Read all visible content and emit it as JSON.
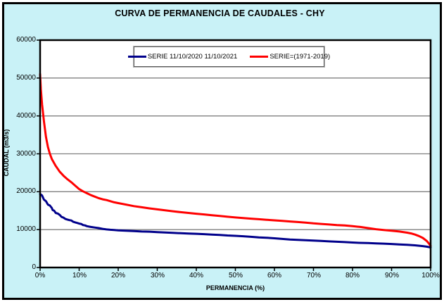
{
  "window": {
    "title": "CURVA DE PERMANENCIA DE CAUDALES - CHY"
  },
  "colors": {
    "background": "#c9f2f7",
    "plot_background": "#ffffff",
    "frame_border": "#000000",
    "gridline": "#808080",
    "axis": "#000000",
    "series_2020": "#00008b",
    "series_1971": "#ff0000"
  },
  "legend": {
    "entries": [
      {
        "label": "SERIE 11/10/2020 11/10/2021",
        "color": "#00008b"
      },
      {
        "label": "SERIE=(1971-2019)",
        "color": "#ff0000"
      }
    ]
  },
  "chart_data": {
    "type": "line",
    "title": "CURVA DE PERMANENCIA DE CAUDALES - CHY",
    "xlabel": "PERMANENCIA (%)",
    "ylabel": "CAUDAL (m3/s)",
    "xlim": [
      0,
      100
    ],
    "ylim": [
      0,
      60000
    ],
    "x_tick_values": [
      0,
      10,
      20,
      30,
      40,
      50,
      60,
      70,
      80,
      90,
      100
    ],
    "x_tick_labels": [
      "0%",
      "10%",
      "20%",
      "30%",
      "40%",
      "50%",
      "60%",
      "70%",
      "80%",
      "90%",
      "100%"
    ],
    "y_tick_values": [
      0,
      10000,
      20000,
      30000,
      40000,
      50000,
      60000
    ],
    "y_tick_labels": [
      "0",
      "10000",
      "20000",
      "30000",
      "40000",
      "50000",
      "60000"
    ],
    "grid": "horizontal",
    "legend_position": "top-inside",
    "series": [
      {
        "name": "SERIE 11/10/2020 11/10/2021",
        "color": "#00008b",
        "width": 3,
        "points": [
          [
            0,
            19400
          ],
          [
            0.5,
            19000
          ],
          [
            1,
            17900
          ],
          [
            1.5,
            17500
          ],
          [
            2,
            16600
          ],
          [
            2.5,
            16350
          ],
          [
            3,
            15700
          ],
          [
            3.2,
            15150
          ],
          [
            3.6,
            15000
          ],
          [
            4,
            14400
          ],
          [
            4.5,
            14250
          ],
          [
            5,
            13900
          ],
          [
            5.5,
            13350
          ],
          [
            6,
            13150
          ],
          [
            6.5,
            12800
          ],
          [
            7,
            12650
          ],
          [
            7.5,
            12500
          ],
          [
            8,
            12400
          ],
          [
            8.5,
            12050
          ],
          [
            9,
            11900
          ],
          [
            9.5,
            11750
          ],
          [
            10,
            11600
          ],
          [
            10.5,
            11500
          ],
          [
            11,
            11200
          ],
          [
            11.5,
            11100
          ],
          [
            12,
            10900
          ],
          [
            13,
            10700
          ],
          [
            14,
            10550
          ],
          [
            15,
            10400
          ],
          [
            16,
            10200
          ],
          [
            17,
            10050
          ],
          [
            18,
            9950
          ],
          [
            19,
            9900
          ],
          [
            20,
            9800
          ],
          [
            22,
            9700
          ],
          [
            24,
            9600
          ],
          [
            26,
            9500
          ],
          [
            28,
            9450
          ],
          [
            30,
            9350
          ],
          [
            32,
            9250
          ],
          [
            34,
            9150
          ],
          [
            36,
            9050
          ],
          [
            38,
            8950
          ],
          [
            40,
            8900
          ],
          [
            42,
            8800
          ],
          [
            44,
            8700
          ],
          [
            46,
            8600
          ],
          [
            48,
            8450
          ],
          [
            50,
            8350
          ],
          [
            52,
            8250
          ],
          [
            54,
            8100
          ],
          [
            56,
            7950
          ],
          [
            58,
            7850
          ],
          [
            60,
            7700
          ],
          [
            62,
            7550
          ],
          [
            64,
            7400
          ],
          [
            66,
            7300
          ],
          [
            68,
            7200
          ],
          [
            70,
            7100
          ],
          [
            72,
            7000
          ],
          [
            74,
            6900
          ],
          [
            76,
            6800
          ],
          [
            78,
            6700
          ],
          [
            80,
            6600
          ],
          [
            82,
            6500
          ],
          [
            84,
            6450
          ],
          [
            86,
            6350
          ],
          [
            88,
            6300
          ],
          [
            90,
            6200
          ],
          [
            92,
            6100
          ],
          [
            94,
            6000
          ],
          [
            96,
            5850
          ],
          [
            98,
            5650
          ],
          [
            99,
            5500
          ],
          [
            100,
            5300
          ]
        ]
      },
      {
        "name": "SERIE=(1971-2019)",
        "color": "#ff0000",
        "width": 3,
        "points": [
          [
            0,
            51000
          ],
          [
            0.2,
            47000
          ],
          [
            0.5,
            43000
          ],
          [
            1,
            38500
          ],
          [
            1.5,
            34500
          ],
          [
            2,
            31800
          ],
          [
            2.5,
            30000
          ],
          [
            3,
            28600
          ],
          [
            4,
            26800
          ],
          [
            5,
            25300
          ],
          [
            6,
            24200
          ],
          [
            7,
            23300
          ],
          [
            8,
            22500
          ],
          [
            9,
            21600
          ],
          [
            10,
            20700
          ],
          [
            11,
            20100
          ],
          [
            12,
            19600
          ],
          [
            13,
            19100
          ],
          [
            14,
            18700
          ],
          [
            15,
            18300
          ],
          [
            16,
            18000
          ],
          [
            17,
            17800
          ],
          [
            18,
            17500
          ],
          [
            19,
            17200
          ],
          [
            20,
            17000
          ],
          [
            22,
            16600
          ],
          [
            24,
            16200
          ],
          [
            26,
            15900
          ],
          [
            28,
            15600
          ],
          [
            30,
            15350
          ],
          [
            32,
            15100
          ],
          [
            34,
            14850
          ],
          [
            36,
            14600
          ],
          [
            38,
            14400
          ],
          [
            40,
            14200
          ],
          [
            42,
            14000
          ],
          [
            44,
            13800
          ],
          [
            46,
            13600
          ],
          [
            48,
            13400
          ],
          [
            50,
            13200
          ],
          [
            52,
            13050
          ],
          [
            54,
            12900
          ],
          [
            56,
            12750
          ],
          [
            58,
            12600
          ],
          [
            60,
            12450
          ],
          [
            62,
            12300
          ],
          [
            64,
            12150
          ],
          [
            66,
            12000
          ],
          [
            68,
            11850
          ],
          [
            70,
            11650
          ],
          [
            72,
            11500
          ],
          [
            74,
            11350
          ],
          [
            76,
            11200
          ],
          [
            78,
            11100
          ],
          [
            80,
            10900
          ],
          [
            82,
            10700
          ],
          [
            84,
            10400
          ],
          [
            86,
            10100
          ],
          [
            88,
            9900
          ],
          [
            90,
            9700
          ],
          [
            92,
            9500
          ],
          [
            94,
            9200
          ],
          [
            95,
            9000
          ],
          [
            96,
            8700
          ],
          [
            97,
            8300
          ],
          [
            98,
            7800
          ],
          [
            99,
            7000
          ],
          [
            99.5,
            6400
          ],
          [
            100,
            5700
          ]
        ]
      }
    ]
  }
}
